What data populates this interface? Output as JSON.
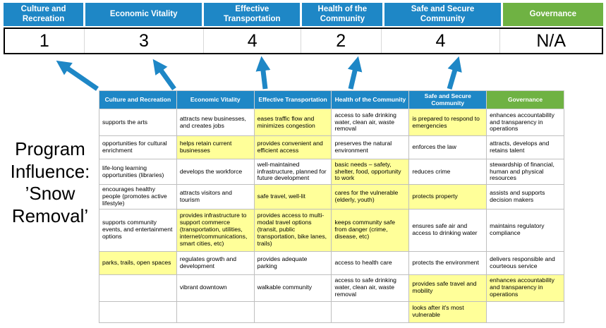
{
  "colors": {
    "header_blue": "#1E87C6",
    "header_green": "#6FB243",
    "highlight_yellow": "#FFFF99",
    "arrow_blue": "#1E87C6",
    "score_band_border": "#000000"
  },
  "title": "Program Influence: ’Snow Removal’",
  "pillars": [
    {
      "label": "Culture and Recreation",
      "score": "1",
      "type": "blue"
    },
    {
      "label": "Economic Vitality",
      "score": "3",
      "type": "blue"
    },
    {
      "label": "Effective Transportation",
      "score": "4",
      "type": "blue"
    },
    {
      "label": "Health of the Community",
      "score": "2",
      "type": "blue"
    },
    {
      "label": "Safe and Secure Community",
      "score": "4",
      "type": "blue"
    },
    {
      "label": "Governance",
      "score": "N/A",
      "type": "green"
    }
  ],
  "matrix": {
    "headers": [
      "Culture and Recreation",
      "Economic Vitality",
      "Effective Transportation",
      "Health of the Community",
      "Safe and Secure Community",
      "Governance"
    ],
    "rows": [
      [
        {
          "text": "supports the arts",
          "highlight": false
        },
        {
          "text": "attracts new businesses, and creates jobs",
          "highlight": false
        },
        {
          "text": "eases traffic flow and minimizes congestion",
          "highlight": true
        },
        {
          "text": "access to safe drinking water, clean air, waste removal",
          "highlight": false
        },
        {
          "text": "is prepared to respond to emergencies",
          "highlight": true
        },
        {
          "text": "enhances accountability and transparency in operations",
          "highlight": false
        }
      ],
      [
        {
          "text": "opportunities for cultural enrichment",
          "highlight": false
        },
        {
          "text": "helps retain current businesses",
          "highlight": true
        },
        {
          "text": "provides convenient and efficient access",
          "highlight": true
        },
        {
          "text": "preserves the natural environment",
          "highlight": false
        },
        {
          "text": "enforces the law",
          "highlight": false
        },
        {
          "text": "attracts, develops and retains talent",
          "highlight": false
        }
      ],
      [
        {
          "text": "life-long learning opportunities (libraries)",
          "highlight": false
        },
        {
          "text": "develops the workforce",
          "highlight": false
        },
        {
          "text": "well-maintained infrastructure, planned for future development",
          "highlight": false
        },
        {
          "text": "basic needs – safety, shelter, food, opportunity to work",
          "highlight": true
        },
        {
          "text": "reduces crime",
          "highlight": false
        },
        {
          "text": "stewardship of financial, human and physical resources",
          "highlight": false
        }
      ],
      [
        {
          "text": "encourages healthy people (promotes active lifestyle)",
          "highlight": false
        },
        {
          "text": "attracts visitors and tourism",
          "highlight": false
        },
        {
          "text": "safe travel, well-lit",
          "highlight": true
        },
        {
          "text": "cares for the vulnerable (elderly, youth)",
          "highlight": true
        },
        {
          "text": "protects property",
          "highlight": true
        },
        {
          "text": "assists and supports decision makers",
          "highlight": false
        }
      ],
      [
        {
          "text": "supports community events, and entertainment options",
          "highlight": false
        },
        {
          "text": "provides infrastructure to support commerce (transportation, utilities, internet/communications, smart cities, etc)",
          "highlight": true
        },
        {
          "text": "provides access to multi-modal travel options (transit, public transportation, bike lanes, trails)",
          "highlight": true
        },
        {
          "text": "keeps community safe from danger (crime, disease, etc)",
          "highlight": true
        },
        {
          "text": "ensures safe air and access to drinking water",
          "highlight": false
        },
        {
          "text": "maintains regulatory compliance",
          "highlight": false
        }
      ],
      [
        {
          "text": "parks, trails, open spaces",
          "highlight": true
        },
        {
          "text": "regulates growth and development",
          "highlight": false
        },
        {
          "text": "provides adequate parking",
          "highlight": false
        },
        {
          "text": "access to health care",
          "highlight": false
        },
        {
          "text": "protects the environment",
          "highlight": false
        },
        {
          "text": "delivers responsible and courteous service",
          "highlight": false
        }
      ],
      [
        {
          "text": "",
          "highlight": false
        },
        {
          "text": "vibrant downtown",
          "highlight": false
        },
        {
          "text": "walkable community",
          "highlight": false
        },
        {
          "text": "access to safe drinking water, clean air, waste removal",
          "highlight": false
        },
        {
          "text": "provides safe travel and mobility",
          "highlight": true
        },
        {
          "text": "enhances accountability and transparency in operations",
          "highlight": true
        }
      ],
      [
        {
          "text": "",
          "highlight": false
        },
        {
          "text": "",
          "highlight": false
        },
        {
          "text": "",
          "highlight": false
        },
        {
          "text": "",
          "highlight": false
        },
        {
          "text": "looks after it's most vulnerable",
          "highlight": true
        },
        {
          "text": "",
          "highlight": false
        }
      ]
    ]
  }
}
